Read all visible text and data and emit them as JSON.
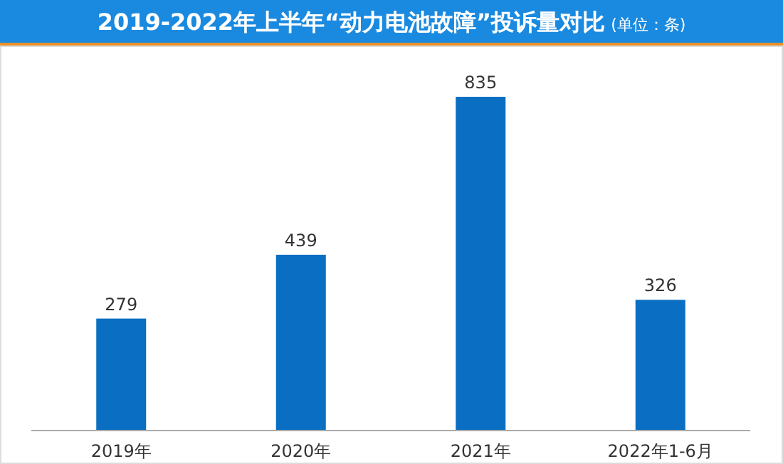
{
  "chart_data": {
    "type": "bar",
    "title": "2019-2022年上半年“动力电池故障”投诉量对比",
    "subtitle": "(单位：条)",
    "categories": [
      "2019年",
      "2020年",
      "2021年",
      "2022年1-6月"
    ],
    "values": [
      279,
      439,
      835,
      326
    ],
    "color": "#0a6fc2",
    "data_labels": true
  }
}
